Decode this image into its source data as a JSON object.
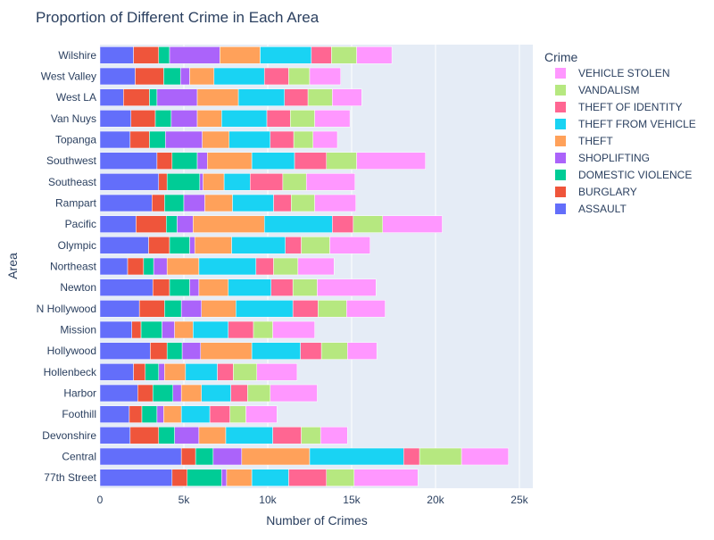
{
  "chart_data": {
    "type": "bar",
    "orientation": "horizontal",
    "stacked": true,
    "title": "Proportion of Different Crime in Each Area",
    "xlabel": "Number of Crimes",
    "ylabel": "Area",
    "xlim": [
      0,
      25800
    ],
    "xticks": [
      0,
      5000,
      10000,
      15000,
      20000,
      25000
    ],
    "xtick_labels": [
      "0",
      "5k",
      "10k",
      "15k",
      "20k",
      "25k"
    ],
    "grid": true,
    "legend_title": "Crime",
    "legend_position": "right",
    "categories": [
      "77th Street",
      "Central",
      "Devonshire",
      "Foothill",
      "Harbor",
      "Hollenbeck",
      "Hollywood",
      "Mission",
      "N Hollywood",
      "Newton",
      "Northeast",
      "Olympic",
      "Pacific",
      "Rampart",
      "Southeast",
      "Southwest",
      "Topanga",
      "Van Nuys",
      "West LA",
      "West Valley",
      "Wilshire"
    ],
    "series": [
      {
        "name": "ASSAULT",
        "color": "#636efa",
        "values": [
          4300,
          4850,
          1800,
          1750,
          2250,
          2000,
          3000,
          1900,
          2350,
          3150,
          1650,
          2900,
          2150,
          3100,
          3500,
          3400,
          1800,
          1850,
          1400,
          2100,
          2000
        ]
      },
      {
        "name": "BURGLARY",
        "color": "#EF553B",
        "values": [
          900,
          850,
          1700,
          750,
          900,
          700,
          1000,
          550,
          1500,
          1000,
          950,
          1250,
          1800,
          750,
          500,
          900,
          1150,
          1450,
          1550,
          1700,
          1500
        ]
      },
      {
        "name": "DOMESTIC VIOLENCE",
        "color": "#00cc96",
        "values": [
          2050,
          1050,
          950,
          900,
          1200,
          800,
          900,
          1250,
          1000,
          1200,
          600,
          1200,
          650,
          1150,
          1950,
          1500,
          950,
          950,
          450,
          1000,
          650
        ]
      },
      {
        "name": "SHOPLIFTING",
        "color": "#ab63fa",
        "values": [
          300,
          1700,
          1450,
          400,
          500,
          350,
          1100,
          750,
          1200,
          550,
          800,
          300,
          950,
          1250,
          200,
          600,
          2200,
          1550,
          2400,
          550,
          3000
        ]
      },
      {
        "name": "THEFT",
        "color": "#FFA15A",
        "values": [
          1500,
          4050,
          1600,
          1050,
          1200,
          1250,
          3050,
          1100,
          2050,
          1750,
          1900,
          2200,
          4250,
          1650,
          1250,
          2650,
          1600,
          1450,
          2450,
          1450,
          2400
        ]
      },
      {
        "name": "THEFT FROM VEHICLE",
        "color": "#19d3f3",
        "values": [
          2200,
          5600,
          2800,
          1700,
          1750,
          1900,
          2900,
          2100,
          3400,
          2550,
          3400,
          3200,
          4050,
          2450,
          1550,
          2550,
          2450,
          2700,
          2750,
          3000,
          3050
        ]
      },
      {
        "name": "THEFT OF IDENTITY",
        "color": "#FF6692",
        "values": [
          2250,
          950,
          1700,
          1200,
          1000,
          950,
          1250,
          1500,
          1500,
          1300,
          1050,
          950,
          1250,
          1050,
          1950,
          1900,
          1400,
          1400,
          1400,
          1450,
          1200
        ]
      },
      {
        "name": "VANDALISM",
        "color": "#B6E880",
        "values": [
          1650,
          2500,
          1150,
          950,
          1350,
          1400,
          1550,
          1150,
          1700,
          1450,
          1450,
          1700,
          1750,
          1400,
          1400,
          1800,
          1150,
          1450,
          1450,
          1250,
          1500
        ]
      },
      {
        "name": "VEHICLE STOLEN",
        "color": "#FF97FF",
        "values": [
          3800,
          2800,
          1600,
          1850,
          2800,
          2400,
          1750,
          2500,
          2300,
          3500,
          2150,
          2400,
          3550,
          2450,
          2900,
          4100,
          1450,
          2100,
          1750,
          1850,
          2100
        ]
      }
    ]
  }
}
